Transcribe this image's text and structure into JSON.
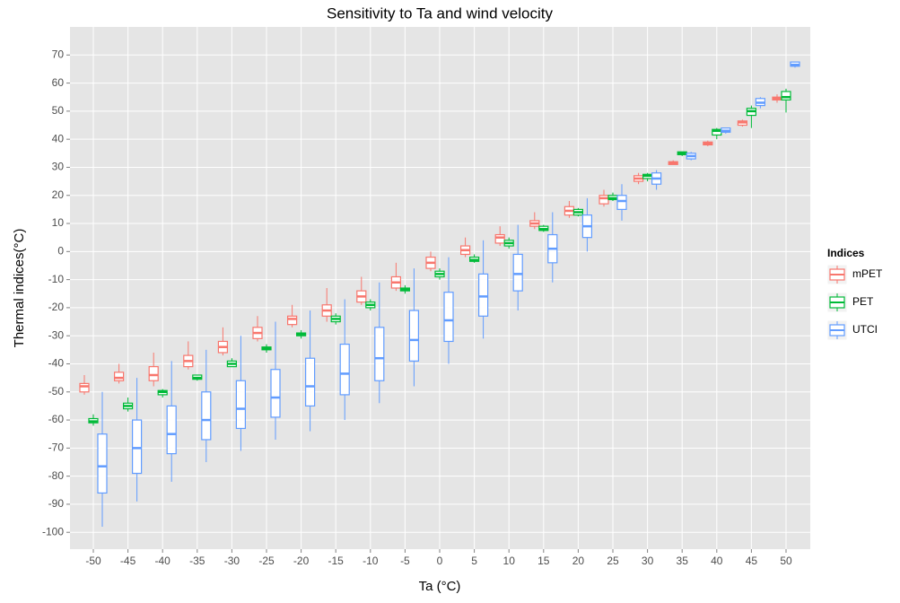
{
  "chart_data": {
    "type": "boxplot",
    "title": "Sensitivity to Ta and wind velocity",
    "x_label": "Ta (°C)",
    "y_label": "Thermal indices(°C)",
    "legend_title": "Indices",
    "legend": "right",
    "grid": true,
    "categories": [
      -50,
      -45,
      -40,
      -35,
      -30,
      -25,
      -20,
      -15,
      -10,
      -5,
      0,
      5,
      10,
      15,
      20,
      25,
      30,
      35,
      40,
      45,
      50
    ],
    "ylim": [
      -106,
      80
    ],
    "yticks": [
      -100,
      -90,
      -80,
      -70,
      -60,
      -50,
      -40,
      -30,
      -20,
      -10,
      0,
      10,
      20,
      30,
      40,
      50,
      60,
      70
    ],
    "series": [
      {
        "name": "mPET",
        "color": "#F8766D",
        "min": [
          -51,
          -47,
          -48,
          -42,
          -37,
          -32,
          -27,
          -25,
          -19,
          -14,
          -7,
          -2,
          2,
          8,
          12,
          16,
          24,
          31,
          37.5,
          44.5,
          53
        ],
        "q1": [
          -50,
          -46,
          -46,
          -41,
          -36,
          -31,
          -26,
          -23,
          -18,
          -13,
          -6,
          -1,
          3,
          9,
          13,
          17,
          25,
          31,
          38,
          45,
          54
        ],
        "median": [
          -48,
          -45,
          -44,
          -39,
          -34,
          -29,
          -24,
          -21,
          -16,
          -11,
          -4,
          0.5,
          5,
          10,
          14.5,
          19,
          26,
          31.5,
          38.5,
          46,
          54.5
        ],
        "q3": [
          -47,
          -43,
          -41,
          -37,
          -32,
          -27,
          -23,
          -19,
          -14,
          -9,
          -2,
          2,
          6,
          11,
          16,
          20,
          27,
          32,
          39,
          46.5,
          55
        ],
        "max": [
          -44,
          -40,
          -36,
          -32,
          -27,
          -23,
          -19,
          -13,
          -9,
          -4,
          0,
          5,
          9,
          14,
          18,
          22,
          28,
          32.5,
          39.5,
          47,
          56
        ]
      },
      {
        "name": "PET",
        "color": "#00BA38",
        "min": [
          -62,
          -57,
          -52,
          -46,
          -41,
          -36,
          -31,
          -26,
          -21,
          -15,
          -10,
          -4,
          1,
          7,
          12.5,
          18,
          25,
          34,
          40,
          44,
          49.5
        ],
        "q1": [
          -61,
          -56,
          -51,
          -45.5,
          -41,
          -35,
          -30,
          -25,
          -20,
          -14,
          -9,
          -3.5,
          2,
          7.5,
          13,
          18.5,
          26,
          34.5,
          41.5,
          48.5,
          54
        ],
        "median": [
          -60.5,
          -55,
          -50,
          -45,
          -40,
          -34.5,
          -29.5,
          -24,
          -19,
          -13.5,
          -8,
          -3,
          3,
          8,
          14,
          19,
          27,
          35,
          43,
          50,
          55
        ],
        "q3": [
          -59.5,
          -54,
          -49.5,
          -44,
          -39,
          -34,
          -29,
          -23,
          -18,
          -13,
          -7,
          -2,
          4,
          9,
          15,
          20,
          27.5,
          35.5,
          43.5,
          51,
          57
        ],
        "max": [
          -58,
          -52,
          -49,
          -44,
          -38,
          -33,
          -28,
          -22,
          -17,
          -12,
          -6,
          -1,
          5,
          9.5,
          15.5,
          21,
          28,
          35.5,
          44,
          52,
          58
        ]
      },
      {
        "name": "UTCI",
        "color": "#619CFF",
        "min": [
          -98,
          -89,
          -82,
          -75,
          -71,
          -67,
          -64,
          -60,
          -54,
          -48,
          -40,
          -31,
          -21,
          -11,
          0,
          11,
          22,
          32.5,
          42,
          51,
          65.5
        ],
        "q1": [
          -86,
          -79,
          -72,
          -67,
          -63,
          -59,
          -55,
          -51,
          -46,
          -39,
          -32,
          -23,
          -14,
          -4,
          5,
          15,
          24,
          33,
          42.5,
          52,
          66
        ],
        "median": [
          -76.5,
          -70,
          -65,
          -60,
          -56,
          -52,
          -48,
          -43.5,
          -38,
          -31.5,
          -24.5,
          -16,
          -8,
          1,
          9,
          18,
          26,
          34,
          43,
          53,
          66.5
        ],
        "q3": [
          -65,
          -60,
          -55,
          -50,
          -46,
          -42,
          -38,
          -33,
          -27,
          -21,
          -14.5,
          -8,
          -1,
          6,
          13,
          20,
          28,
          35,
          44,
          54.5,
          67.5
        ],
        "max": [
          -50,
          -45,
          -39,
          -35,
          -30,
          -25,
          -21,
          -17,
          -11,
          -6,
          -2,
          4,
          9.5,
          14,
          19,
          24,
          29,
          35.5,
          44,
          55,
          67.5
        ]
      }
    ]
  }
}
